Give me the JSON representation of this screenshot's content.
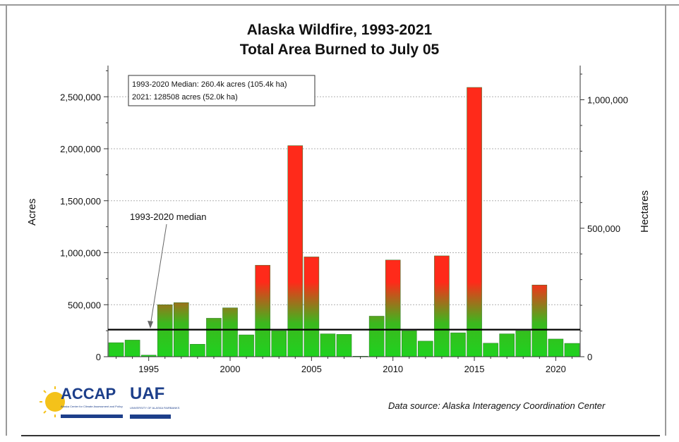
{
  "title_line1": "Alaska Wildfire, 1993-2021",
  "title_line2": "Total Area Burned to July 05",
  "legend_box": {
    "line1": "1993-2020 Median: 260.4k acres (105.4k ha)",
    "line2": "2021: 128508 acres (52.0k ha)"
  },
  "annotation": "1993-2020 median",
  "source": "Data source: Alaska Interagency Coordination Center",
  "logo": {
    "accap": "ACCAP",
    "uaf": "UAF",
    "subtext": "Alaska Center for Climate Assessment and Policy",
    "uaf_sub": "UNIVERSITY OF ALASKA FAIRBANKS"
  },
  "colors": {
    "low": "#22cc22",
    "high": "#ff2a1a",
    "median_line": "#000000",
    "grid": "#b0b0b0"
  },
  "chart_data": {
    "type": "bar",
    "title": "Alaska Wildfire, 1993-2021 Total Area Burned to July 05",
    "xlabel": "",
    "ylabel": "Acres",
    "ylabel_right": "Hectares",
    "ylim": [
      0,
      2800000
    ],
    "y_ticks": [
      "0",
      "500,000",
      "1,000,000",
      "1,500,000",
      "2,000,000",
      "2,500,000"
    ],
    "y_tick_values": [
      0,
      500000,
      1000000,
      1500000,
      2000000,
      2500000
    ],
    "y2_ticks": [
      "0",
      "500,000",
      "1,000,000"
    ],
    "y2_tick_values_ha": [
      0,
      500000,
      1000000
    ],
    "x_ticks": [
      "1995",
      "2000",
      "2005",
      "2010",
      "2015",
      "2020"
    ],
    "x_tick_values": [
      1995,
      2000,
      2005,
      2010,
      2015,
      2020
    ],
    "grid": true,
    "median_acres": 260400,
    "x": [
      1993,
      1994,
      1995,
      1996,
      1997,
      1998,
      1999,
      2000,
      2001,
      2002,
      2003,
      2004,
      2005,
      2006,
      2007,
      2008,
      2009,
      2010,
      2011,
      2012,
      2013,
      2014,
      2015,
      2016,
      2017,
      2018,
      2019,
      2020,
      2021
    ],
    "values": [
      135000,
      160000,
      15000,
      500000,
      520000,
      120000,
      370000,
      470000,
      210000,
      880000,
      250000,
      2030000,
      960000,
      220000,
      215000,
      5000,
      390000,
      930000,
      250000,
      150000,
      970000,
      230000,
      2590000,
      130000,
      220000,
      250000,
      690000,
      170000,
      128508
    ]
  }
}
